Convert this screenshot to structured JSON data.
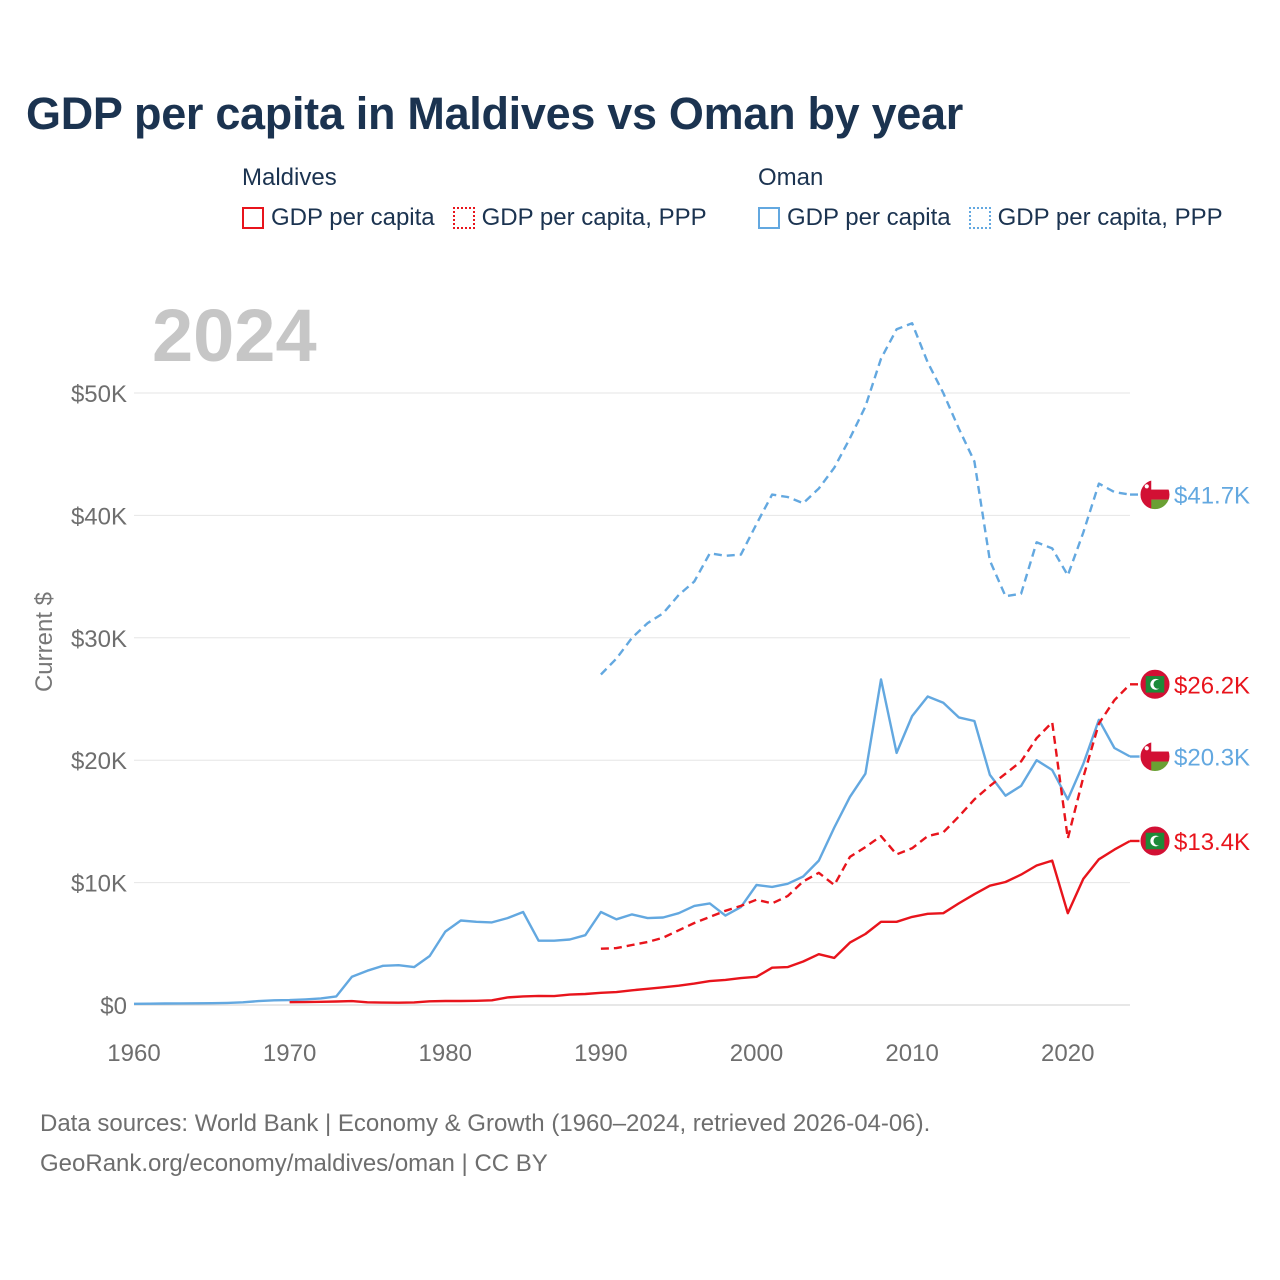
{
  "title": "GDP per capita in Maldives vs Oman by year",
  "legend": {
    "groups": [
      {
        "country": "Maldives",
        "color": "#e8141c",
        "items": [
          {
            "label": "GDP per capita",
            "style": "solid"
          },
          {
            "label": "GDP per capita, PPP",
            "style": "dotted"
          }
        ]
      },
      {
        "country": "Oman",
        "color": "#63a8e0",
        "items": [
          {
            "label": "GDP per capita",
            "style": "solid"
          },
          {
            "label": "GDP per capita, PPP",
            "style": "dotted"
          }
        ]
      }
    ]
  },
  "year_label": "2024",
  "footer": {
    "source": "Data sources: World Bank | Economy & Growth (1960–2024, retrieved 2026-04-06).",
    "link": "GeoRank.org/economy/maldives/oman | CC BY"
  },
  "chart_data": {
    "type": "line",
    "ylabel": "Current $",
    "xlabel": "",
    "xlim": [
      1960,
      2024
    ],
    "ylim": [
      0,
      55800
    ],
    "x_ticks": [
      1960,
      1970,
      1980,
      1990,
      2000,
      2010,
      2020
    ],
    "y_ticks": [
      0,
      10000,
      20000,
      30000,
      40000,
      50000
    ],
    "y_tick_labels": [
      "$0",
      "$10K",
      "$20K",
      "$30K",
      "$40K",
      "$50K"
    ],
    "grid": true,
    "series": [
      {
        "name": "Oman GDP per capita",
        "country": "Oman",
        "color": "#63a8e0",
        "dash": "solid",
        "end_label": "$20.3K",
        "flag": "oman",
        "points": [
          [
            1960,
            100
          ],
          [
            1961,
            110
          ],
          [
            1962,
            120
          ],
          [
            1963,
            130
          ],
          [
            1964,
            140
          ],
          [
            1965,
            150
          ],
          [
            1966,
            170
          ],
          [
            1967,
            220
          ],
          [
            1968,
            320
          ],
          [
            1969,
            380
          ],
          [
            1970,
            400
          ],
          [
            1971,
            460
          ],
          [
            1972,
            540
          ],
          [
            1973,
            700
          ],
          [
            1974,
            2300
          ],
          [
            1975,
            2800
          ],
          [
            1976,
            3200
          ],
          [
            1977,
            3250
          ],
          [
            1978,
            3100
          ],
          [
            1979,
            4000
          ],
          [
            1980,
            6000
          ],
          [
            1981,
            6900
          ],
          [
            1982,
            6800
          ],
          [
            1983,
            6750
          ],
          [
            1984,
            7100
          ],
          [
            1985,
            7600
          ],
          [
            1986,
            5250
          ],
          [
            1987,
            5250
          ],
          [
            1988,
            5350
          ],
          [
            1989,
            5700
          ],
          [
            1990,
            7600
          ],
          [
            1991,
            7000
          ],
          [
            1992,
            7400
          ],
          [
            1993,
            7100
          ],
          [
            1994,
            7150
          ],
          [
            1995,
            7500
          ],
          [
            1996,
            8100
          ],
          [
            1997,
            8300
          ],
          [
            1998,
            7300
          ],
          [
            1999,
            8000
          ],
          [
            2000,
            9800
          ],
          [
            2001,
            9650
          ],
          [
            2002,
            9900
          ],
          [
            2003,
            10500
          ],
          [
            2004,
            11800
          ],
          [
            2005,
            14500
          ],
          [
            2006,
            17000
          ],
          [
            2007,
            18900
          ],
          [
            2008,
            26600
          ],
          [
            2009,
            20600
          ],
          [
            2010,
            23600
          ],
          [
            2011,
            25200
          ],
          [
            2012,
            24700
          ],
          [
            2013,
            23500
          ],
          [
            2014,
            23200
          ],
          [
            2015,
            18800
          ],
          [
            2016,
            17100
          ],
          [
            2017,
            17900
          ],
          [
            2018,
            20000
          ],
          [
            2019,
            19200
          ],
          [
            2020,
            16800
          ],
          [
            2021,
            19700
          ],
          [
            2022,
            23300
          ],
          [
            2023,
            21000
          ],
          [
            2024,
            20300
          ]
        ]
      },
      {
        "name": "Oman GDP per capita, PPP",
        "country": "Oman",
        "color": "#63a8e0",
        "dash": "dashed",
        "end_label": "$41.7K",
        "flag": "oman",
        "points": [
          [
            1990,
            27000
          ],
          [
            1991,
            28300
          ],
          [
            1992,
            30000
          ],
          [
            1993,
            31200
          ],
          [
            1994,
            32000
          ],
          [
            1995,
            33500
          ],
          [
            1996,
            34600
          ],
          [
            1997,
            36900
          ],
          [
            1998,
            36700
          ],
          [
            1999,
            36800
          ],
          [
            2000,
            39300
          ],
          [
            2001,
            41700
          ],
          [
            2002,
            41500
          ],
          [
            2003,
            41000
          ],
          [
            2004,
            42200
          ],
          [
            2005,
            43900
          ],
          [
            2006,
            46300
          ],
          [
            2007,
            48900
          ],
          [
            2008,
            52800
          ],
          [
            2009,
            55200
          ],
          [
            2010,
            55700
          ],
          [
            2011,
            52500
          ],
          [
            2012,
            50000
          ],
          [
            2013,
            47100
          ],
          [
            2014,
            44400
          ],
          [
            2015,
            36300
          ],
          [
            2016,
            33400
          ],
          [
            2017,
            33600
          ],
          [
            2018,
            37800
          ],
          [
            2019,
            37300
          ],
          [
            2020,
            35100
          ],
          [
            2021,
            38600
          ],
          [
            2022,
            42600
          ],
          [
            2023,
            41900
          ],
          [
            2024,
            41700
          ]
        ]
      },
      {
        "name": "Maldives GDP per capita, PPP",
        "country": "Maldives",
        "color": "#e8141c",
        "dash": "dashed",
        "end_label": "$26.2K",
        "flag": "maldives",
        "points": [
          [
            1990,
            4600
          ],
          [
            1991,
            4650
          ],
          [
            1992,
            4900
          ],
          [
            1993,
            5150
          ],
          [
            1994,
            5500
          ],
          [
            1995,
            6100
          ],
          [
            1996,
            6700
          ],
          [
            1997,
            7200
          ],
          [
            1998,
            7700
          ],
          [
            1999,
            8100
          ],
          [
            2000,
            8600
          ],
          [
            2001,
            8300
          ],
          [
            2002,
            8900
          ],
          [
            2003,
            10100
          ],
          [
            2004,
            10800
          ],
          [
            2005,
            9800
          ],
          [
            2006,
            12100
          ],
          [
            2007,
            12900
          ],
          [
            2008,
            13800
          ],
          [
            2009,
            12300
          ],
          [
            2010,
            12800
          ],
          [
            2011,
            13800
          ],
          [
            2012,
            14100
          ],
          [
            2013,
            15400
          ],
          [
            2014,
            16800
          ],
          [
            2015,
            17900
          ],
          [
            2016,
            18900
          ],
          [
            2017,
            19900
          ],
          [
            2018,
            21800
          ],
          [
            2019,
            23100
          ],
          [
            2020,
            13600
          ],
          [
            2021,
            18600
          ],
          [
            2022,
            23000
          ],
          [
            2023,
            24900
          ],
          [
            2024,
            26200
          ]
        ]
      },
      {
        "name": "Maldives GDP per capita",
        "country": "Maldives",
        "color": "#e8141c",
        "dash": "solid",
        "end_label": "$13.4K",
        "flag": "maldives",
        "points": [
          [
            1970,
            230
          ],
          [
            1971,
            240
          ],
          [
            1972,
            260
          ],
          [
            1973,
            290
          ],
          [
            1974,
            320
          ],
          [
            1975,
            220
          ],
          [
            1976,
            200
          ],
          [
            1977,
            190
          ],
          [
            1978,
            210
          ],
          [
            1979,
            300
          ],
          [
            1980,
            330
          ],
          [
            1981,
            330
          ],
          [
            1982,
            340
          ],
          [
            1983,
            380
          ],
          [
            1984,
            620
          ],
          [
            1985,
            700
          ],
          [
            1986,
            740
          ],
          [
            1987,
            730
          ],
          [
            1988,
            850
          ],
          [
            1989,
            900
          ],
          [
            1990,
            1000
          ],
          [
            1991,
            1050
          ],
          [
            1992,
            1200
          ],
          [
            1993,
            1320
          ],
          [
            1994,
            1450
          ],
          [
            1995,
            1580
          ],
          [
            1996,
            1750
          ],
          [
            1997,
            1950
          ],
          [
            1998,
            2050
          ],
          [
            1999,
            2200
          ],
          [
            2000,
            2300
          ],
          [
            2001,
            3050
          ],
          [
            2002,
            3100
          ],
          [
            2003,
            3550
          ],
          [
            2004,
            4150
          ],
          [
            2005,
            3850
          ],
          [
            2006,
            5100
          ],
          [
            2007,
            5800
          ],
          [
            2008,
            6800
          ],
          [
            2009,
            6800
          ],
          [
            2010,
            7200
          ],
          [
            2011,
            7450
          ],
          [
            2012,
            7500
          ],
          [
            2013,
            8300
          ],
          [
            2014,
            9050
          ],
          [
            2015,
            9750
          ],
          [
            2016,
            10050
          ],
          [
            2017,
            10650
          ],
          [
            2018,
            11400
          ],
          [
            2019,
            11800
          ],
          [
            2020,
            7500
          ],
          [
            2021,
            10300
          ],
          [
            2022,
            11900
          ],
          [
            2023,
            12700
          ],
          [
            2024,
            13400
          ]
        ]
      }
    ]
  }
}
